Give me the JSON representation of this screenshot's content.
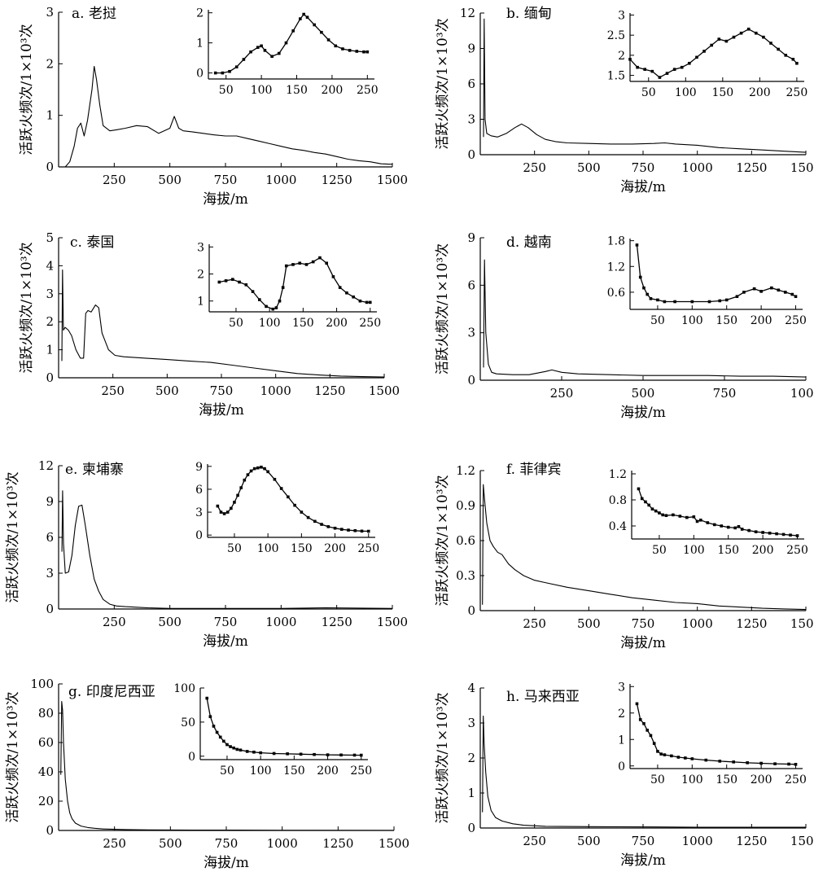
{
  "chart_data": [
    {
      "type": "line",
      "title": "a. 老挝",
      "xlabel": "海拔/m",
      "ylabel": "活跃火频次/1×10³次",
      "xlim": [
        0,
        1500
      ],
      "ylim": [
        0,
        3
      ],
      "xticks": [
        250,
        500,
        750,
        1000,
        1250,
        1500
      ],
      "yticks": [
        0,
        1,
        2,
        3
      ],
      "x": [
        30,
        50,
        70,
        85,
        100,
        115,
        130,
        150,
        160,
        170,
        185,
        200,
        230,
        260,
        300,
        350,
        400,
        450,
        500,
        520,
        540,
        560,
        600,
        650,
        700,
        750,
        800,
        850,
        900,
        950,
        1000,
        1050,
        1100,
        1150,
        1200,
        1250,
        1300,
        1350,
        1400,
        1450,
        1500
      ],
      "y": [
        0,
        0.1,
        0.4,
        0.75,
        0.85,
        0.6,
        0.9,
        1.5,
        1.95,
        1.7,
        1.2,
        0.8,
        0.7,
        0.72,
        0.75,
        0.8,
        0.78,
        0.65,
        0.75,
        0.98,
        0.75,
        0.7,
        0.68,
        0.65,
        0.62,
        0.6,
        0.6,
        0.55,
        0.5,
        0.45,
        0.4,
        0.35,
        0.32,
        0.28,
        0.25,
        0.2,
        0.15,
        0.12,
        0.1,
        0.06,
        0.05
      ],
      "inset": {
        "xlim": [
          25,
          260
        ],
        "ylim": [
          -0.2,
          2.1
        ],
        "xticks": [
          50,
          100,
          150,
          200,
          250
        ],
        "yticks": [
          0,
          1,
          2
        ],
        "x": [
          35,
          45,
          55,
          65,
          75,
          85,
          95,
          100,
          105,
          115,
          125,
          135,
          145,
          155,
          160,
          165,
          175,
          185,
          195,
          205,
          215,
          225,
          235,
          245,
          250
        ],
        "y": [
          0,
          0,
          0.05,
          0.2,
          0.45,
          0.7,
          0.85,
          0.9,
          0.75,
          0.55,
          0.65,
          1.0,
          1.4,
          1.8,
          1.95,
          1.85,
          1.6,
          1.35,
          1.1,
          0.9,
          0.8,
          0.75,
          0.72,
          0.7,
          0.7
        ]
      }
    },
    {
      "type": "line",
      "title": "b. 缅甸",
      "xlabel": "海拔/m",
      "ylabel": "活跃火频次/1×10³次",
      "xlim": [
        0,
        1500
      ],
      "ylim": [
        0,
        12
      ],
      "xticks": [
        250,
        500,
        750,
        1000,
        1250,
        1500
      ],
      "yticks": [
        0,
        3,
        6,
        9,
        12
      ],
      "x": [
        15,
        18,
        22,
        30,
        50,
        80,
        120,
        160,
        190,
        220,
        260,
        300,
        350,
        400,
        500,
        600,
        700,
        800,
        850,
        900,
        1000,
        1100,
        1200,
        1300,
        1400,
        1500
      ],
      "y": [
        1.5,
        11.5,
        3,
        1.8,
        1.6,
        1.5,
        1.8,
        2.3,
        2.6,
        2.3,
        1.7,
        1.3,
        1.1,
        1.0,
        0.95,
        0.9,
        0.9,
        0.95,
        1.0,
        0.9,
        0.8,
        0.6,
        0.5,
        0.4,
        0.3,
        0.2
      ],
      "inset": {
        "xlim": [
          25,
          260
        ],
        "ylim": [
          1.35,
          3.05
        ],
        "xticks": [
          50,
          100,
          150,
          200,
          250
        ],
        "yticks": [
          1.5,
          2.0,
          2.5,
          3.0
        ],
        "x": [
          25,
          35,
          45,
          55,
          65,
          75,
          85,
          95,
          105,
          115,
          125,
          135,
          145,
          155,
          165,
          175,
          185,
          195,
          205,
          215,
          225,
          235,
          245,
          250
        ],
        "y": [
          1.9,
          1.7,
          1.65,
          1.6,
          1.45,
          1.55,
          1.65,
          1.7,
          1.8,
          1.95,
          2.1,
          2.25,
          2.4,
          2.35,
          2.45,
          2.55,
          2.65,
          2.55,
          2.45,
          2.3,
          2.15,
          2.0,
          1.9,
          1.8
        ]
      }
    },
    {
      "type": "line",
      "title": "c. 泰国",
      "xlabel": "海拔/m",
      "ylabel": "活跃火频次/1×10³次",
      "xlim": [
        0,
        1500
      ],
      "ylim": [
        0,
        5
      ],
      "xticks": [
        250,
        500,
        750,
        1000,
        1250,
        1500
      ],
      "yticks": [
        0,
        1,
        2,
        3,
        4,
        5
      ],
      "x": [
        15,
        18,
        22,
        30,
        45,
        60,
        80,
        100,
        115,
        125,
        135,
        150,
        170,
        185,
        200,
        230,
        260,
        300,
        400,
        500,
        600,
        700,
        800,
        900,
        1000,
        1100,
        1200,
        1300,
        1400,
        1500
      ],
      "y": [
        0.6,
        3.85,
        1.7,
        1.8,
        1.7,
        1.5,
        1.0,
        0.7,
        0.7,
        2.3,
        2.4,
        2.35,
        2.6,
        2.5,
        1.6,
        1.0,
        0.8,
        0.75,
        0.7,
        0.65,
        0.6,
        0.55,
        0.45,
        0.35,
        0.25,
        0.15,
        0.1,
        0.06,
        0.04,
        0.03
      ],
      "inset": {
        "xlim": [
          10,
          260
        ],
        "ylim": [
          0.6,
          3.1
        ],
        "xticks": [
          50,
          100,
          150,
          200,
          250
        ],
        "yticks": [
          1,
          2,
          3
        ],
        "x": [
          25,
          35,
          45,
          55,
          65,
          75,
          85,
          95,
          105,
          110,
          115,
          120,
          125,
          135,
          145,
          155,
          165,
          175,
          185,
          195,
          205,
          215,
          225,
          235,
          245,
          250
        ],
        "y": [
          1.7,
          1.75,
          1.8,
          1.7,
          1.6,
          1.35,
          1.05,
          0.8,
          0.7,
          0.75,
          1.0,
          1.5,
          2.3,
          2.35,
          2.4,
          2.35,
          2.45,
          2.6,
          2.4,
          1.9,
          1.5,
          1.3,
          1.15,
          1.0,
          0.95,
          0.95
        ]
      }
    },
    {
      "type": "line",
      "title": "d. 越南",
      "xlabel": "海拔/m",
      "ylabel": "活跃火频次/1×10³次",
      "xlim": [
        0,
        1000
      ],
      "ylim": [
        0,
        9
      ],
      "xticks": [
        250,
        500,
        750,
        1000
      ],
      "yticks": [
        0,
        3,
        6,
        9
      ],
      "x": [
        10,
        13,
        17,
        25,
        35,
        50,
        100,
        150,
        200,
        220,
        250,
        300,
        400,
        500,
        600,
        700,
        800,
        900,
        1000
      ],
      "y": [
        0.8,
        7.6,
        3,
        1.0,
        0.5,
        0.4,
        0.35,
        0.35,
        0.55,
        0.65,
        0.5,
        0.4,
        0.35,
        0.3,
        0.3,
        0.3,
        0.25,
        0.25,
        0.2
      ],
      "inset": {
        "xlim": [
          10,
          260
        ],
        "ylim": [
          0.2,
          1.85
        ],
        "xticks": [
          50,
          100,
          150,
          200,
          250
        ],
        "yticks": [
          0.6,
          1.2,
          1.8
        ],
        "x": [
          20,
          25,
          30,
          35,
          40,
          50,
          60,
          75,
          100,
          125,
          140,
          150,
          165,
          175,
          190,
          200,
          215,
          225,
          235,
          245,
          250
        ],
        "y": [
          1.7,
          0.95,
          0.7,
          0.55,
          0.45,
          0.42,
          0.38,
          0.38,
          0.38,
          0.38,
          0.4,
          0.42,
          0.5,
          0.6,
          0.68,
          0.62,
          0.7,
          0.65,
          0.6,
          0.55,
          0.5
        ]
      }
    },
    {
      "type": "line",
      "title": "e. 柬埔寨",
      "xlabel": "海拔/m",
      "ylabel": "活跃火频次/1×10³次",
      "xlim": [
        0,
        1500
      ],
      "ylim": [
        0,
        12
      ],
      "xticks": [
        250,
        500,
        750,
        1000,
        1250,
        1500
      ],
      "yticks": [
        0,
        3,
        6,
        9,
        12
      ],
      "x": [
        15,
        18,
        22,
        30,
        45,
        60,
        75,
        90,
        105,
        120,
        140,
        160,
        180,
        200,
        230,
        260,
        300,
        350,
        400,
        500,
        700,
        1000,
        1200,
        1500
      ],
      "y": [
        4.8,
        9.9,
        5.5,
        3,
        3.1,
        4.5,
        7.0,
        8.6,
        8.7,
        7.0,
        4.5,
        2.5,
        1.5,
        0.8,
        0.4,
        0.25,
        0.2,
        0.15,
        0.1,
        0.05,
        0.05,
        0.05,
        0.1,
        0.05
      ],
      "inset": {
        "xlim": [
          10,
          260
        ],
        "ylim": [
          -0.3,
          9.3
        ],
        "xticks": [
          50,
          100,
          150,
          200,
          250
        ],
        "yticks": [
          0,
          3,
          6,
          9
        ],
        "x": [
          25,
          30,
          35,
          40,
          45,
          50,
          55,
          60,
          65,
          70,
          75,
          80,
          85,
          90,
          95,
          100,
          110,
          120,
          130,
          140,
          150,
          160,
          170,
          180,
          190,
          200,
          210,
          220,
          230,
          240,
          250
        ],
        "y": [
          3.8,
          3.0,
          2.8,
          3.0,
          3.5,
          4.3,
          5.2,
          6.2,
          7.2,
          7.9,
          8.4,
          8.7,
          8.8,
          8.9,
          8.7,
          8.3,
          7.3,
          6.1,
          5.0,
          3.9,
          3.0,
          2.3,
          1.8,
          1.4,
          1.1,
          0.9,
          0.75,
          0.65,
          0.58,
          0.52,
          0.5
        ]
      }
    },
    {
      "type": "line",
      "title": "f. 菲律宾",
      "xlabel": "海拔/m",
      "ylabel": "活跃火频次/1×10³次",
      "xlim": [
        0,
        1500
      ],
      "ylim": [
        0,
        1.2
      ],
      "xticks": [
        250,
        500,
        750,
        1000,
        1250,
        1500
      ],
      "yticks": [
        0,
        0.3,
        0.6,
        0.9,
        1.2
      ],
      "x": [
        10,
        14,
        20,
        30,
        45,
        60,
        80,
        100,
        130,
        160,
        200,
        250,
        300,
        400,
        500,
        600,
        700,
        800,
        900,
        1000,
        1100,
        1200,
        1300,
        1400,
        1500
      ],
      "y": [
        0.05,
        1.08,
        0.95,
        0.75,
        0.6,
        0.55,
        0.5,
        0.48,
        0.4,
        0.35,
        0.3,
        0.26,
        0.24,
        0.2,
        0.17,
        0.14,
        0.11,
        0.09,
        0.07,
        0.06,
        0.04,
        0.03,
        0.02,
        0.015,
        0.01
      ],
      "inset": {
        "xlim": [
          10,
          260
        ],
        "ylim": [
          0.2,
          1.25
        ],
        "xticks": [
          50,
          100,
          150,
          200,
          250
        ],
        "yticks": [
          0.4,
          0.8,
          1.2
        ],
        "x": [
          20,
          25,
          30,
          35,
          40,
          45,
          50,
          55,
          60,
          70,
          80,
          90,
          100,
          105,
          110,
          120,
          130,
          140,
          150,
          160,
          165,
          170,
          180,
          190,
          200,
          210,
          220,
          230,
          240,
          250
        ],
        "y": [
          0.97,
          0.82,
          0.77,
          0.72,
          0.66,
          0.63,
          0.6,
          0.57,
          0.56,
          0.57,
          0.55,
          0.53,
          0.54,
          0.47,
          0.49,
          0.45,
          0.42,
          0.4,
          0.38,
          0.37,
          0.39,
          0.35,
          0.33,
          0.31,
          0.3,
          0.29,
          0.28,
          0.27,
          0.26,
          0.25
        ]
      }
    },
    {
      "type": "line",
      "title": "g. 印度尼西亚",
      "xlabel": "海拔/m",
      "ylabel": "活跃火频次/1×10³次",
      "xlim": [
        0,
        1500
      ],
      "ylim": [
        0,
        100
      ],
      "xticks": [
        250,
        500,
        750,
        1000,
        1250,
        1500
      ],
      "yticks": [
        0,
        20,
        40,
        60,
        80,
        100
      ],
      "x": [
        10,
        14,
        18,
        22,
        30,
        40,
        50,
        60,
        75,
        100,
        130,
        160,
        200,
        300,
        400,
        600,
        800,
        1000,
        1500
      ],
      "y": [
        38,
        88,
        82,
        60,
        35,
        20,
        12,
        8,
        5,
        3,
        2,
        1.5,
        1,
        0.6,
        0.4,
        0.3,
        0.2,
        0.1,
        0.05
      ],
      "inset": {
        "xlim": [
          10,
          260
        ],
        "ylim": [
          -5,
          100
        ],
        "xticks": [
          50,
          100,
          150,
          200,
          250
        ],
        "yticks": [
          0,
          50,
          100
        ],
        "x": [
          20,
          25,
          30,
          35,
          40,
          45,
          50,
          55,
          60,
          65,
          70,
          80,
          90,
          100,
          120,
          140,
          160,
          180,
          200,
          220,
          240,
          250
        ],
        "y": [
          85,
          58,
          44,
          35,
          28,
          22,
          17,
          14,
          12,
          10,
          9,
          7,
          6,
          5,
          4,
          3.5,
          3,
          2.5,
          2,
          1.8,
          1.6,
          1.5
        ]
      }
    },
    {
      "type": "line",
      "title": "h. 马来西亚",
      "xlabel": "海拔/m",
      "ylabel": "活跃火频次/1×10³次",
      "xlim": [
        0,
        1500
      ],
      "ylim": [
        0,
        4
      ],
      "xticks": [
        250,
        500,
        750,
        1000,
        1250,
        1500
      ],
      "yticks": [
        0,
        1,
        2,
        3,
        4
      ],
      "x": [
        10,
        14,
        18,
        25,
        35,
        50,
        70,
        100,
        150,
        200,
        300,
        500,
        800,
        1000,
        1500
      ],
      "y": [
        0.45,
        3.2,
        2.4,
        1.6,
        0.9,
        0.5,
        0.3,
        0.2,
        0.12,
        0.08,
        0.05,
        0.04,
        0.03,
        0.02,
        0.02
      ],
      "inset": {
        "xlim": [
          10,
          260
        ],
        "ylim": [
          -0.1,
          3.1
        ],
        "xticks": [
          50,
          100,
          150,
          200,
          250
        ],
        "yticks": [
          0,
          1,
          2,
          3
        ],
        "x": [
          20,
          25,
          30,
          35,
          40,
          45,
          50,
          55,
          60,
          70,
          80,
          90,
          100,
          120,
          140,
          160,
          180,
          200,
          220,
          240,
          250
        ],
        "y": [
          2.35,
          1.75,
          1.6,
          1.35,
          1.15,
          0.85,
          0.55,
          0.45,
          0.42,
          0.38,
          0.33,
          0.3,
          0.27,
          0.22,
          0.18,
          0.15,
          0.12,
          0.1,
          0.08,
          0.07,
          0.06
        ]
      }
    }
  ]
}
